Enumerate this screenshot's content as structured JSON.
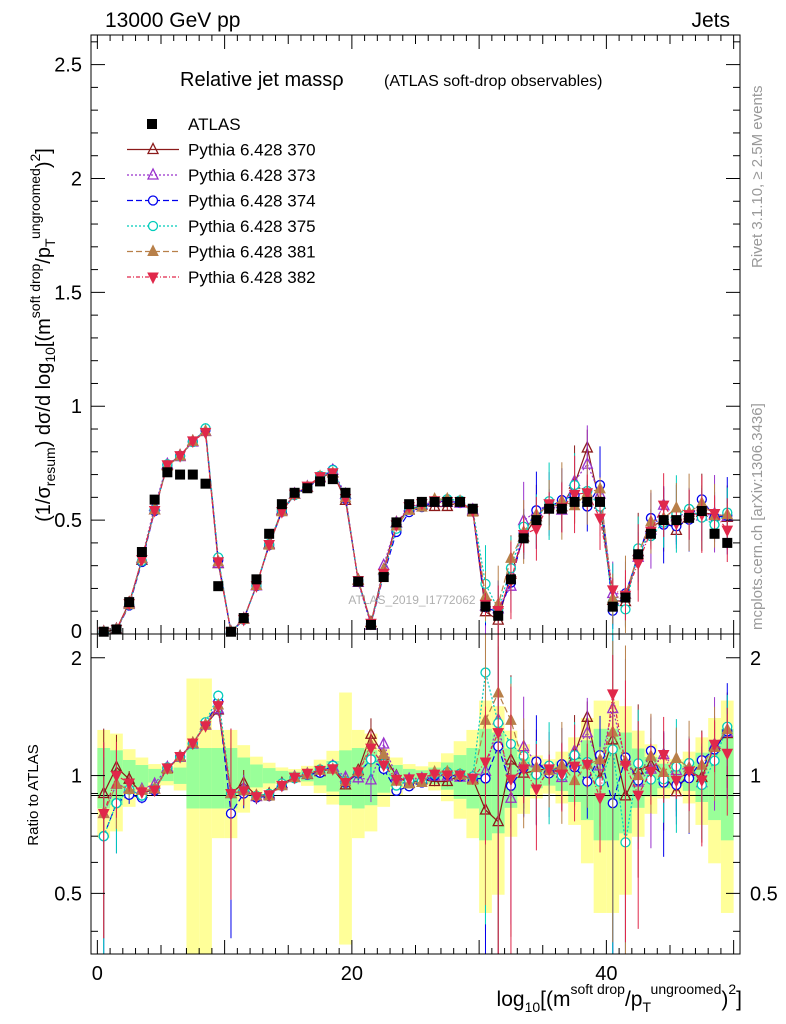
{
  "header": {
    "energy_label": "13000 GeV pp",
    "category_label": "Jets"
  },
  "side_text": {
    "rivet_label": "Rivet 3.1.10, ≥ 2.5M events",
    "mcplots_label": "mcplots.cern.ch [arXiv:1306.3436]"
  },
  "watermark": "ATLAS_2019_I1772062",
  "chart_data": {
    "type": "line",
    "title": "Relative jet massρ",
    "subtitle": "(ATLAS soft-drop observables)",
    "ylabel_main": "(1/σresum) dσ/d log10[(m soft drop/pT ungroomed)2]",
    "ylabel_ratio": "Ratio to ATLAS",
    "xlabel": "log10[(m soft drop/pT ungroomed)2]",
    "xlim": [
      -0.5,
      50.5
    ],
    "ylim": [
      0,
      2.63
    ],
    "ratio_ylim": [
      0.35,
      2.3
    ],
    "x_ticks": [
      0,
      20,
      40
    ],
    "y_ticks": [
      0.5,
      1,
      1.5,
      2,
      2.5
    ],
    "y_tick_labels": [
      "0.5",
      "1",
      "1.5",
      "2",
      "2.5"
    ],
    "ratio_ticks": [
      0.5,
      1,
      2
    ],
    "ratio_tick_labels": [
      "0.5",
      "1",
      "2"
    ],
    "x": [
      0.5,
      1.5,
      2.5,
      3.5,
      4.5,
      5.5,
      6.5,
      7.5,
      8.5,
      9.5,
      10.5,
      11.5,
      12.5,
      13.5,
      14.5,
      15.5,
      16.5,
      17.5,
      18.5,
      19.5,
      20.5,
      21.5,
      22.5,
      23.5,
      24.5,
      25.5,
      26.5,
      27.5,
      28.5,
      29.5,
      30.5,
      31.5,
      32.5,
      33.5,
      34.5,
      35.5,
      36.5,
      37.5,
      38.5,
      39.5,
      40.5,
      41.5,
      42.5,
      43.5,
      44.5,
      45.5,
      46.5,
      47.5,
      48.5,
      49.5
    ],
    "data": {
      "name": "ATLAS",
      "values": [
        0.01,
        0.02,
        0.14,
        0.36,
        0.59,
        0.71,
        0.7,
        0.7,
        0.66,
        0.21,
        0.01,
        0.07,
        0.24,
        0.44,
        0.57,
        0.62,
        0.64,
        0.67,
        0.68,
        0.62,
        0.23,
        0.04,
        0.25,
        0.49,
        0.57,
        0.58,
        0.58,
        0.58,
        0.58,
        0.55,
        0.12,
        0.08,
        0.24,
        0.42,
        0.5,
        0.55,
        0.55,
        0.58,
        0.58,
        0.58,
        0.12,
        0.16,
        0.35,
        0.44,
        0.5,
        0.5,
        0.51,
        0.54,
        0.44,
        0.4
      ]
    },
    "series": [
      {
        "name": "Pythia 6.428 370",
        "color": "#8b1a1a",
        "marker": "triangle-open",
        "dash": "",
        "values": [
          0.009,
          0.021,
          0.137,
          0.324,
          0.545,
          0.741,
          0.783,
          0.846,
          0.889,
          0.309,
          0.009,
          0.067,
          0.213,
          0.395,
          0.544,
          0.613,
          0.644,
          0.686,
          0.708,
          0.587,
          0.237,
          0.051,
          0.282,
          0.489,
          0.545,
          0.566,
          0.56,
          0.56,
          0.581,
          0.539,
          0.098,
          0.061,
          0.263,
          0.426,
          0.515,
          0.573,
          0.559,
          0.658,
          0.817,
          0.57,
          0.148,
          0.142,
          0.362,
          0.468,
          0.502,
          0.455,
          0.523,
          0.534,
          0.523,
          0.512
        ]
      },
      {
        "name": "Pythia 6.428 373",
        "color": "#9932cc",
        "marker": "triangle-open",
        "dash": "2,2",
        "values": [
          0.008,
          0.019,
          0.13,
          0.332,
          0.561,
          0.745,
          0.779,
          0.843,
          0.89,
          0.311,
          0.009,
          0.065,
          0.212,
          0.392,
          0.54,
          0.615,
          0.646,
          0.689,
          0.719,
          0.613,
          0.227,
          0.039,
          0.301,
          0.487,
          0.558,
          0.57,
          0.578,
          0.578,
          0.575,
          0.545,
          0.123,
          0.111,
          0.21,
          0.498,
          0.539,
          0.571,
          0.544,
          0.67,
          0.746,
          0.614,
          0.178,
          0.175,
          0.337,
          0.457,
          0.566,
          0.515,
          0.535,
          0.518,
          0.528,
          0.516
        ]
      },
      {
        "name": "Pythia 6.428 374",
        "color": "#0000ee",
        "marker": "circle-open",
        "dash": "6,3",
        "values": [
          0.007,
          0.017,
          0.125,
          0.316,
          0.54,
          0.742,
          0.782,
          0.845,
          0.896,
          0.324,
          0.008,
          0.063,
          0.211,
          0.39,
          0.537,
          0.611,
          0.643,
          0.681,
          0.721,
          0.594,
          0.233,
          0.044,
          0.26,
          0.448,
          0.535,
          0.557,
          0.58,
          0.583,
          0.577,
          0.54,
          0.118,
          0.095,
          0.226,
          0.44,
          0.543,
          0.557,
          0.588,
          0.609,
          0.56,
          0.654,
          0.102,
          0.178,
          0.34,
          0.509,
          0.48,
          0.473,
          0.502,
          0.591,
          0.513,
          0.519
        ]
      },
      {
        "name": "Pythia 6.428 375",
        "color": "#00ccbb",
        "marker": "circle-open",
        "dash": "2,2",
        "values": [
          0.007,
          0.017,
          0.129,
          0.32,
          0.545,
          0.745,
          0.78,
          0.843,
          0.903,
          0.336,
          0.009,
          0.064,
          0.213,
          0.395,
          0.544,
          0.61,
          0.645,
          0.694,
          0.72,
          0.6,
          0.234,
          0.044,
          0.268,
          0.462,
          0.554,
          0.56,
          0.585,
          0.592,
          0.586,
          0.547,
          0.22,
          0.109,
          0.289,
          0.471,
          0.503,
          0.583,
          0.55,
          0.654,
          0.628,
          0.559,
          0.14,
          0.108,
          0.376,
          0.43,
          0.489,
          0.527,
          0.549,
          0.511,
          0.48,
          0.533
        ]
      },
      {
        "name": "Pythia 6.428 381",
        "color": "#b8804a",
        "marker": "triangle-full",
        "dash": "6,3",
        "values": [
          0.008,
          0.019,
          0.129,
          0.33,
          0.545,
          0.737,
          0.781,
          0.846,
          0.891,
          0.318,
          0.009,
          0.064,
          0.213,
          0.39,
          0.537,
          0.613,
          0.645,
          0.691,
          0.706,
          0.598,
          0.235,
          0.048,
          0.283,
          0.474,
          0.543,
          0.557,
          0.592,
          0.593,
          0.581,
          0.535,
          0.166,
          0.13,
          0.332,
          0.448,
          0.524,
          0.566,
          0.584,
          0.563,
          0.62,
          0.637,
          0.155,
          0.174,
          0.35,
          0.493,
          0.509,
          0.553,
          0.534,
          0.574,
          0.519,
          0.524
        ]
      },
      {
        "name": "Pythia 6.428 382",
        "color": "#e0284a",
        "marker": "triangle-down-full",
        "dash": "4,2,1,2",
        "values": [
          0.008,
          0.02,
          0.134,
          0.327,
          0.542,
          0.743,
          0.783,
          0.848,
          0.885,
          0.317,
          0.009,
          0.064,
          0.212,
          0.393,
          0.538,
          0.614,
          0.649,
          0.691,
          0.708,
          0.595,
          0.235,
          0.047,
          0.266,
          0.479,
          0.559,
          0.573,
          0.585,
          0.582,
          0.582,
          0.542,
          0.13,
          0.103,
          0.235,
          0.437,
          0.462,
          0.572,
          0.555,
          0.613,
          0.62,
          0.509,
          0.194,
          0.17,
          0.312,
          0.451,
          0.566,
          0.486,
          0.524,
          0.526,
          0.529,
          0.456
        ]
      }
    ],
    "legend_placement": "top-left",
    "grid": false
  }
}
